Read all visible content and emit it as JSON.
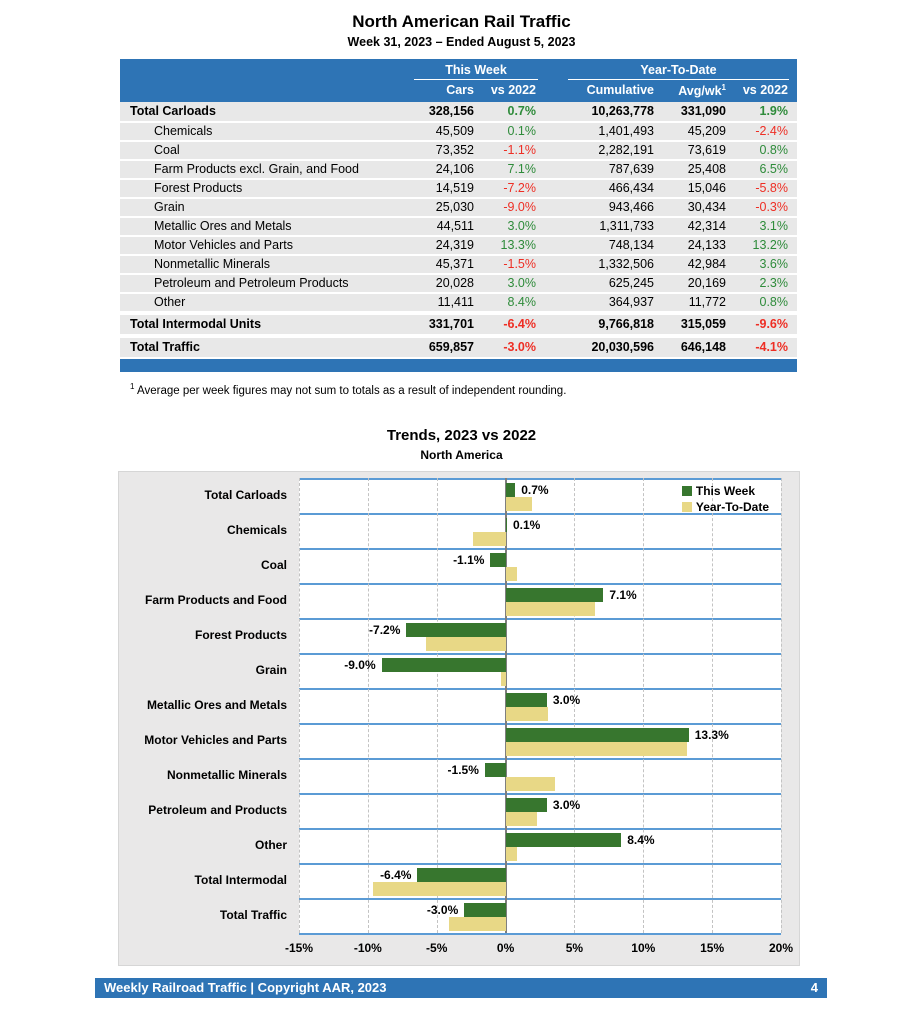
{
  "page": {
    "title": "North American Rail Traffic",
    "subtitle": "Week 31, 2023 – Ended August 5, 2023",
    "footnote": {
      "sup": "1",
      "text": "Average per week figures may not sum to totals as a result of independent rounding."
    },
    "footer": {
      "text": "Weekly Railroad Traffic | Copyright AAR, 2023",
      "page_number": "4"
    }
  },
  "table": {
    "groups": {
      "this_week": "This Week",
      "year_to_date": "Year-To-Date"
    },
    "columns": {
      "cars": "Cars",
      "wk_vs": "vs 2022",
      "cumulative": "Cumulative",
      "avg_wk": "Avg/wk",
      "avg_wk_sup": "1",
      "ytd_vs": "vs 2022"
    },
    "rows": [
      {
        "label": "Total Carloads",
        "bold": true,
        "indent": false,
        "gap_before": false,
        "cars": "328,156",
        "wk_vs": "0.7%",
        "cumulative": "10,263,778",
        "avg_wk": "331,090",
        "ytd_vs": "1.9%"
      },
      {
        "label": "Chemicals",
        "bold": false,
        "indent": true,
        "gap_before": false,
        "cars": "45,509",
        "wk_vs": "0.1%",
        "cumulative": "1,401,493",
        "avg_wk": "45,209",
        "ytd_vs": "-2.4%"
      },
      {
        "label": "Coal",
        "bold": false,
        "indent": true,
        "gap_before": false,
        "cars": "73,352",
        "wk_vs": "-1.1%",
        "cumulative": "2,282,191",
        "avg_wk": "73,619",
        "ytd_vs": "0.8%"
      },
      {
        "label": "Farm Products excl. Grain, and Food",
        "bold": false,
        "indent": true,
        "gap_before": false,
        "cars": "24,106",
        "wk_vs": "7.1%",
        "cumulative": "787,639",
        "avg_wk": "25,408",
        "ytd_vs": "6.5%"
      },
      {
        "label": "Forest Products",
        "bold": false,
        "indent": true,
        "gap_before": false,
        "cars": "14,519",
        "wk_vs": "-7.2%",
        "cumulative": "466,434",
        "avg_wk": "15,046",
        "ytd_vs": "-5.8%"
      },
      {
        "label": "Grain",
        "bold": false,
        "indent": true,
        "gap_before": false,
        "cars": "25,030",
        "wk_vs": "-9.0%",
        "cumulative": "943,466",
        "avg_wk": "30,434",
        "ytd_vs": "-0.3%"
      },
      {
        "label": "Metallic Ores and Metals",
        "bold": false,
        "indent": true,
        "gap_before": false,
        "cars": "44,511",
        "wk_vs": "3.0%",
        "cumulative": "1,311,733",
        "avg_wk": "42,314",
        "ytd_vs": "3.1%"
      },
      {
        "label": "Motor Vehicles and Parts",
        "bold": false,
        "indent": true,
        "gap_before": false,
        "cars": "24,319",
        "wk_vs": "13.3%",
        "cumulative": "748,134",
        "avg_wk": "24,133",
        "ytd_vs": "13.2%"
      },
      {
        "label": "Nonmetallic Minerals",
        "bold": false,
        "indent": true,
        "gap_before": false,
        "cars": "45,371",
        "wk_vs": "-1.5%",
        "cumulative": "1,332,506",
        "avg_wk": "42,984",
        "ytd_vs": "3.6%"
      },
      {
        "label": "Petroleum and Petroleum Products",
        "bold": false,
        "indent": true,
        "gap_before": false,
        "cars": "20,028",
        "wk_vs": "3.0%",
        "cumulative": "625,245",
        "avg_wk": "20,169",
        "ytd_vs": "2.3%"
      },
      {
        "label": "Other",
        "bold": false,
        "indent": true,
        "gap_before": false,
        "cars": "11,411",
        "wk_vs": "8.4%",
        "cumulative": "364,937",
        "avg_wk": "11,772",
        "ytd_vs": "0.8%"
      },
      {
        "label": "Total Intermodal Units",
        "bold": true,
        "indent": false,
        "gap_before": true,
        "cars": "331,701",
        "wk_vs": "-6.4%",
        "cumulative": "9,766,818",
        "avg_wk": "315,059",
        "ytd_vs": "-9.6%"
      },
      {
        "label": "Total Traffic",
        "bold": true,
        "indent": false,
        "gap_before": true,
        "cars": "659,857",
        "wk_vs": "-3.0%",
        "cumulative": "20,030,596",
        "avg_wk": "646,148",
        "ytd_vs": "-4.1%"
      }
    ]
  },
  "chart_data": {
    "type": "bar",
    "orientation": "horizontal",
    "title": "Trends, 2023 vs 2022",
    "subtitle": "North America",
    "categories": [
      "Total Carloads",
      "Chemicals",
      "Coal",
      "Farm Products and Food",
      "Forest Products",
      "Grain",
      "Metallic Ores and Metals",
      "Motor Vehicles and Parts",
      "Nonmetallic Minerals",
      "Petroleum and Products",
      "Other",
      "Total Intermodal",
      "Total Traffic"
    ],
    "series": [
      {
        "name": "This Week",
        "color": "#37762E",
        "values": [
          0.7,
          0.1,
          -1.1,
          7.1,
          -7.2,
          -9.0,
          3.0,
          13.3,
          -1.5,
          3.0,
          8.4,
          -6.4,
          -3.0
        ]
      },
      {
        "name": "Year-To-Date",
        "color": "#E8D886",
        "values": [
          1.9,
          -2.4,
          0.8,
          6.5,
          -5.8,
          -0.3,
          3.1,
          13.2,
          3.6,
          2.3,
          0.8,
          -9.6,
          -4.1
        ]
      }
    ],
    "bar_labels": [
      "0.7%",
      "0.1%",
      "-1.1%",
      "7.1%",
      "-7.2%",
      "-9.0%",
      "3.0%",
      "13.3%",
      "-1.5%",
      "3.0%",
      "8.4%",
      "-6.4%",
      "-3.0%"
    ],
    "xlim": [
      -15,
      20
    ],
    "x_ticks": [
      "-15%",
      "-10%",
      "-5%",
      "0%",
      "5%",
      "10%",
      "15%",
      "20%"
    ],
    "x_tick_values": [
      -15,
      -10,
      -5,
      0,
      5,
      10,
      15,
      20
    ],
    "grid": true,
    "legend_position": "top-right"
  },
  "colors": {
    "header_blue": "#2E74B5",
    "row_gray": "#E8E8E8",
    "chart_bg": "#E9E8E8",
    "band_line_blue": "#5B9BD5",
    "this_week_green": "#37762E",
    "ytd_tan": "#E8D886",
    "positive_green": "#2E8B3A",
    "negative_red": "#EE2E24",
    "zero_line_gray": "#7F7F7F"
  }
}
